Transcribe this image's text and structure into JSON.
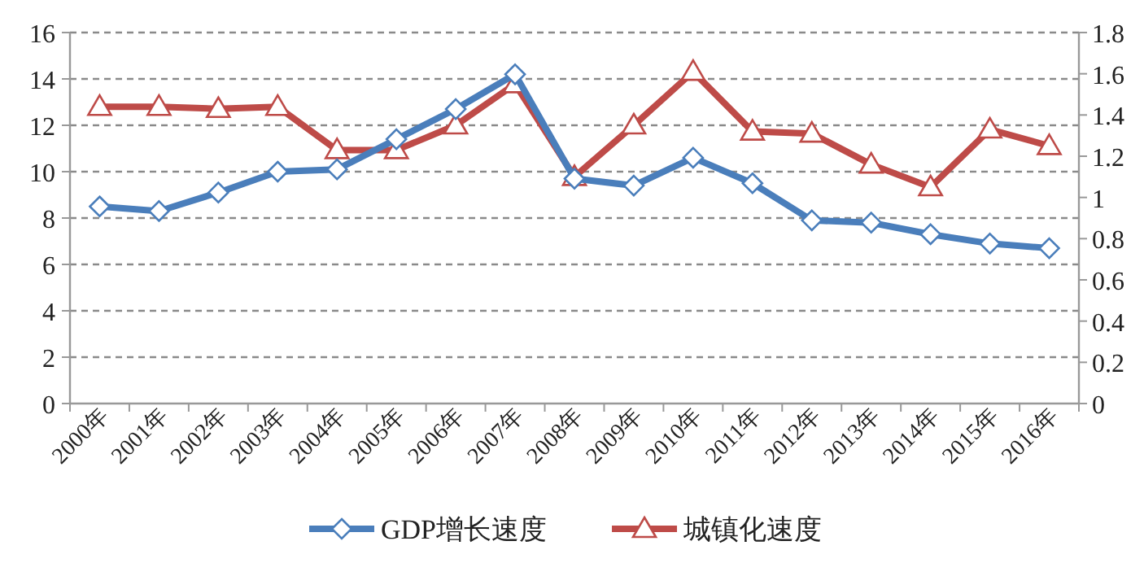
{
  "chart_data": {
    "type": "line",
    "categories": [
      "2000年",
      "2001年",
      "2002年",
      "2003年",
      "2004年",
      "2005年",
      "2006年",
      "2007年",
      "2008年",
      "2009年",
      "2010年",
      "2011年",
      "2012年",
      "2013年",
      "2014年",
      "2015年",
      "2016年"
    ],
    "series": [
      {
        "name": "GDP增长速度",
        "color": "#4a7ebb",
        "marker": "diamond",
        "values": [
          8.5,
          8.3,
          9.1,
          10.0,
          10.1,
          11.4,
          12.7,
          14.2,
          9.7,
          9.4,
          10.6,
          9.5,
          7.9,
          7.8,
          7.3,
          6.9,
          6.7
        ]
      },
      {
        "name": "城镇化速度",
        "color": "#be4b48",
        "marker": "triangle",
        "axis": "y2",
        "values": [
          1.44,
          1.44,
          1.43,
          1.44,
          1.23,
          1.23,
          1.35,
          1.55,
          1.1,
          1.35,
          1.61,
          1.32,
          1.31,
          1.16,
          1.05,
          1.33,
          1.25
        ]
      }
    ],
    "ylim": [
      0,
      16
    ],
    "yticks": [
      0,
      2,
      4,
      6,
      8,
      10,
      12,
      14,
      16
    ],
    "y2lim": [
      0,
      1.8
    ],
    "y2ticks": [
      0,
      0.2,
      0.4,
      0.6,
      0.8,
      1,
      1.2,
      1.4,
      1.6,
      1.8
    ],
    "grid": "y",
    "legend": "bottom",
    "line_style": "solid"
  }
}
